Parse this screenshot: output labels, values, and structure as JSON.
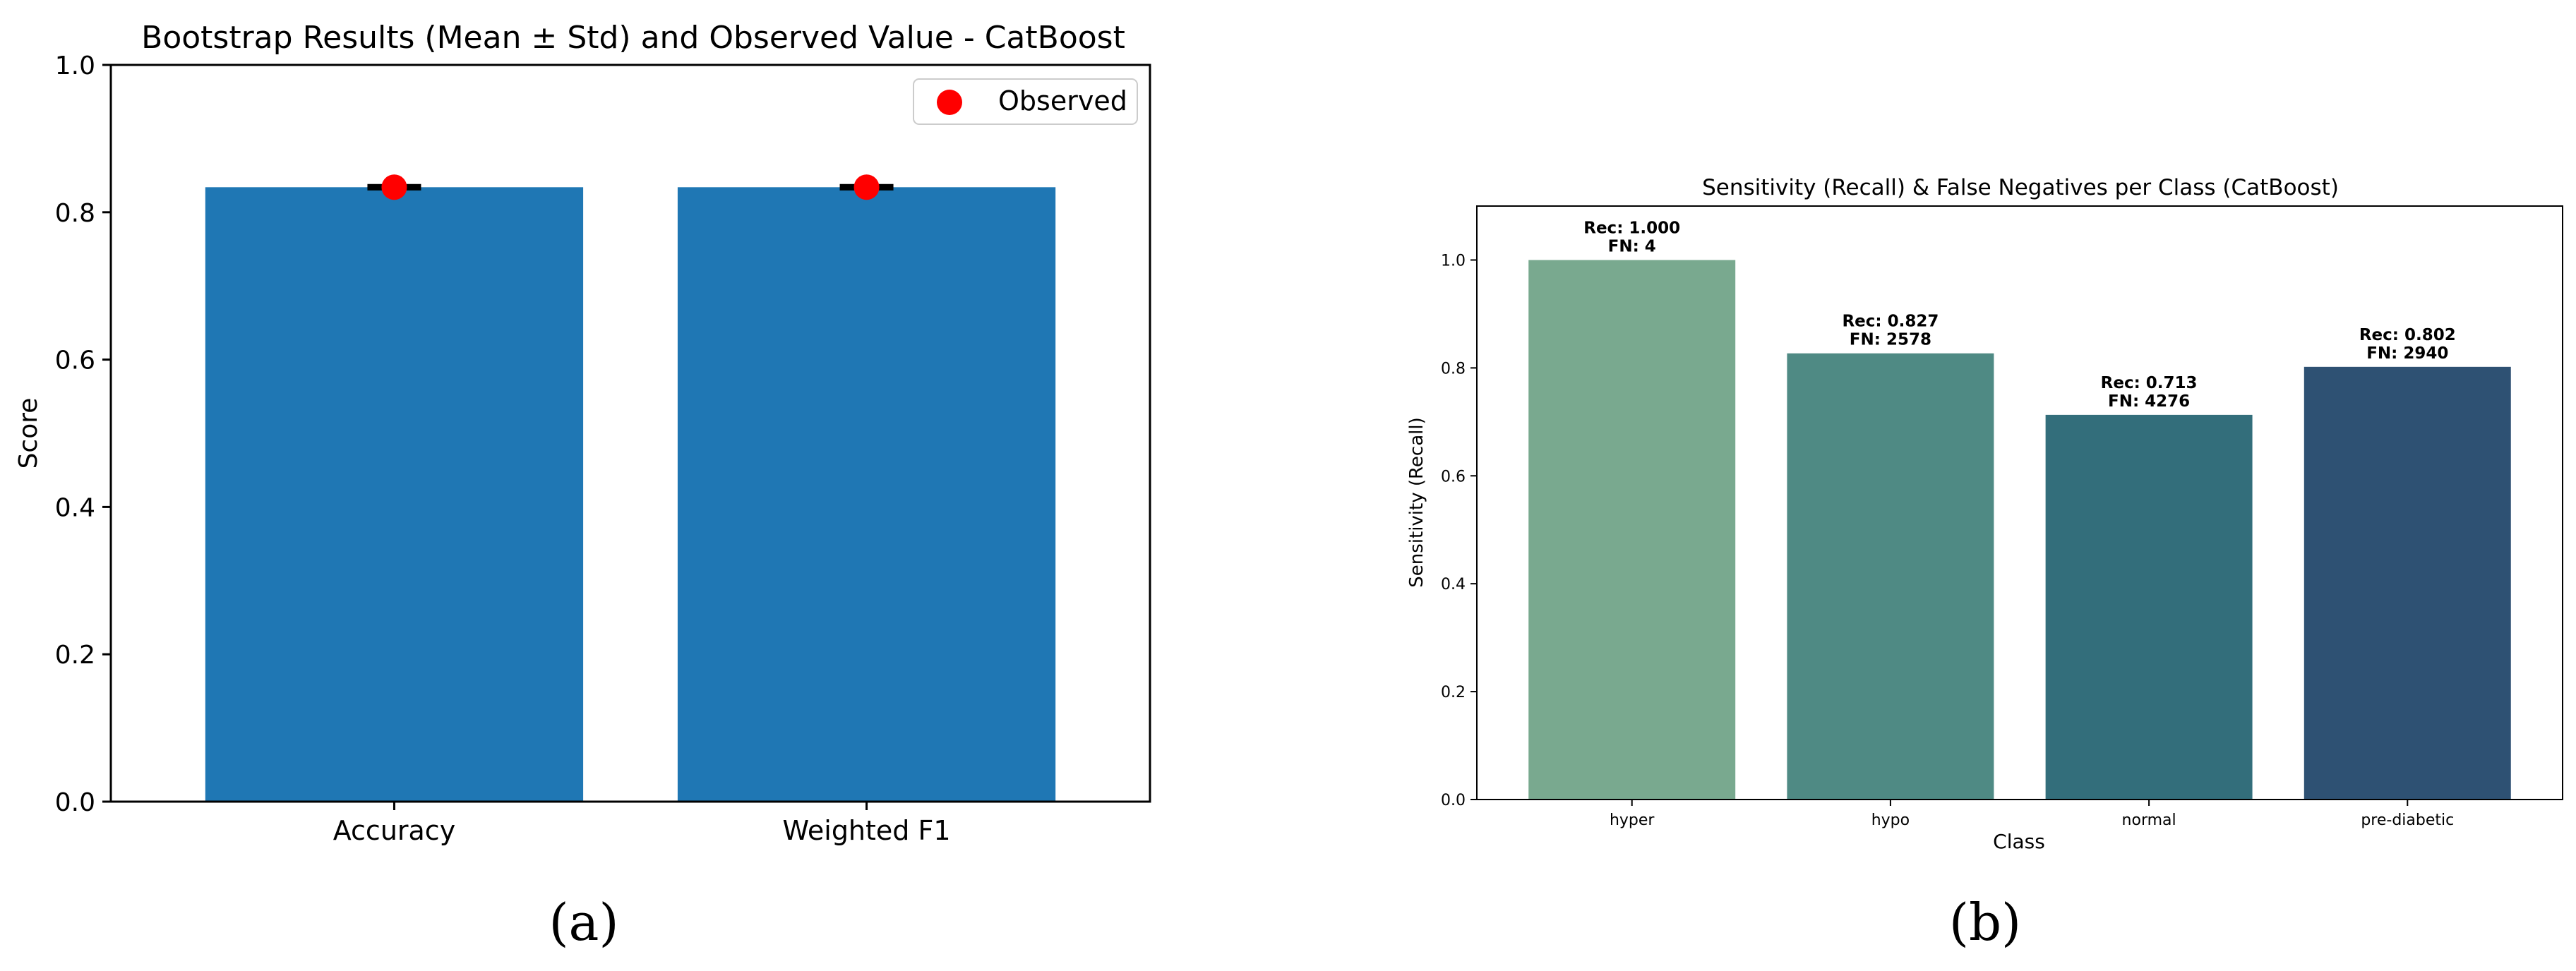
{
  "chart_data": [
    {
      "type": "bar",
      "title": "Bootstrap Results (Mean ± Std) and Observed Value - CatBoost",
      "xlabel": "",
      "ylabel": "Score",
      "categories": [
        "Accuracy",
        "Weighted F1"
      ],
      "series": [
        {
          "name": "",
          "values": [
            0.834,
            0.834
          ],
          "error": [
            0.002,
            0.002
          ],
          "color": "#1f77b4"
        },
        {
          "name": "Observed",
          "values": [
            0.834,
            0.834
          ],
          "color": "#ff0000"
        }
      ],
      "ylim": [
        0,
        1.0
      ],
      "yticks": [
        "0.0",
        "0.2",
        "0.4",
        "0.6",
        "0.8",
        "1.0"
      ],
      "legend": {
        "entries": [
          "Observed"
        ],
        "placement": "top-right"
      },
      "grid": false,
      "panel_label": "(a)"
    },
    {
      "type": "bar",
      "title": "Sensitivity (Recall) & False Negatives per Class (CatBoost)",
      "xlabel": "Class",
      "ylabel": "Sensitivity (Recall)",
      "categories": [
        "hyper",
        "hypo",
        "normal",
        "pre-diabetic"
      ],
      "values": [
        1.0,
        0.827,
        0.713,
        0.802
      ],
      "fn": [
        4,
        2578,
        4276,
        2940
      ],
      "data_labels": [
        [
          "Rec: 1.000",
          "FN: 4"
        ],
        [
          "Rec: 0.827",
          "FN: 2578"
        ],
        [
          "Rec: 0.713",
          "FN: 4276"
        ],
        [
          "Rec: 0.802",
          "FN: 2940"
        ]
      ],
      "colors": [
        "#79a98f",
        "#4f8a84",
        "#336e7b",
        "#2e5173"
      ],
      "ylim": [
        0,
        1.1
      ],
      "yticks": [
        "0.0",
        "0.2",
        "0.4",
        "0.6",
        "0.8",
        "1.0"
      ],
      "grid": false,
      "panel_label": "(b)"
    }
  ]
}
